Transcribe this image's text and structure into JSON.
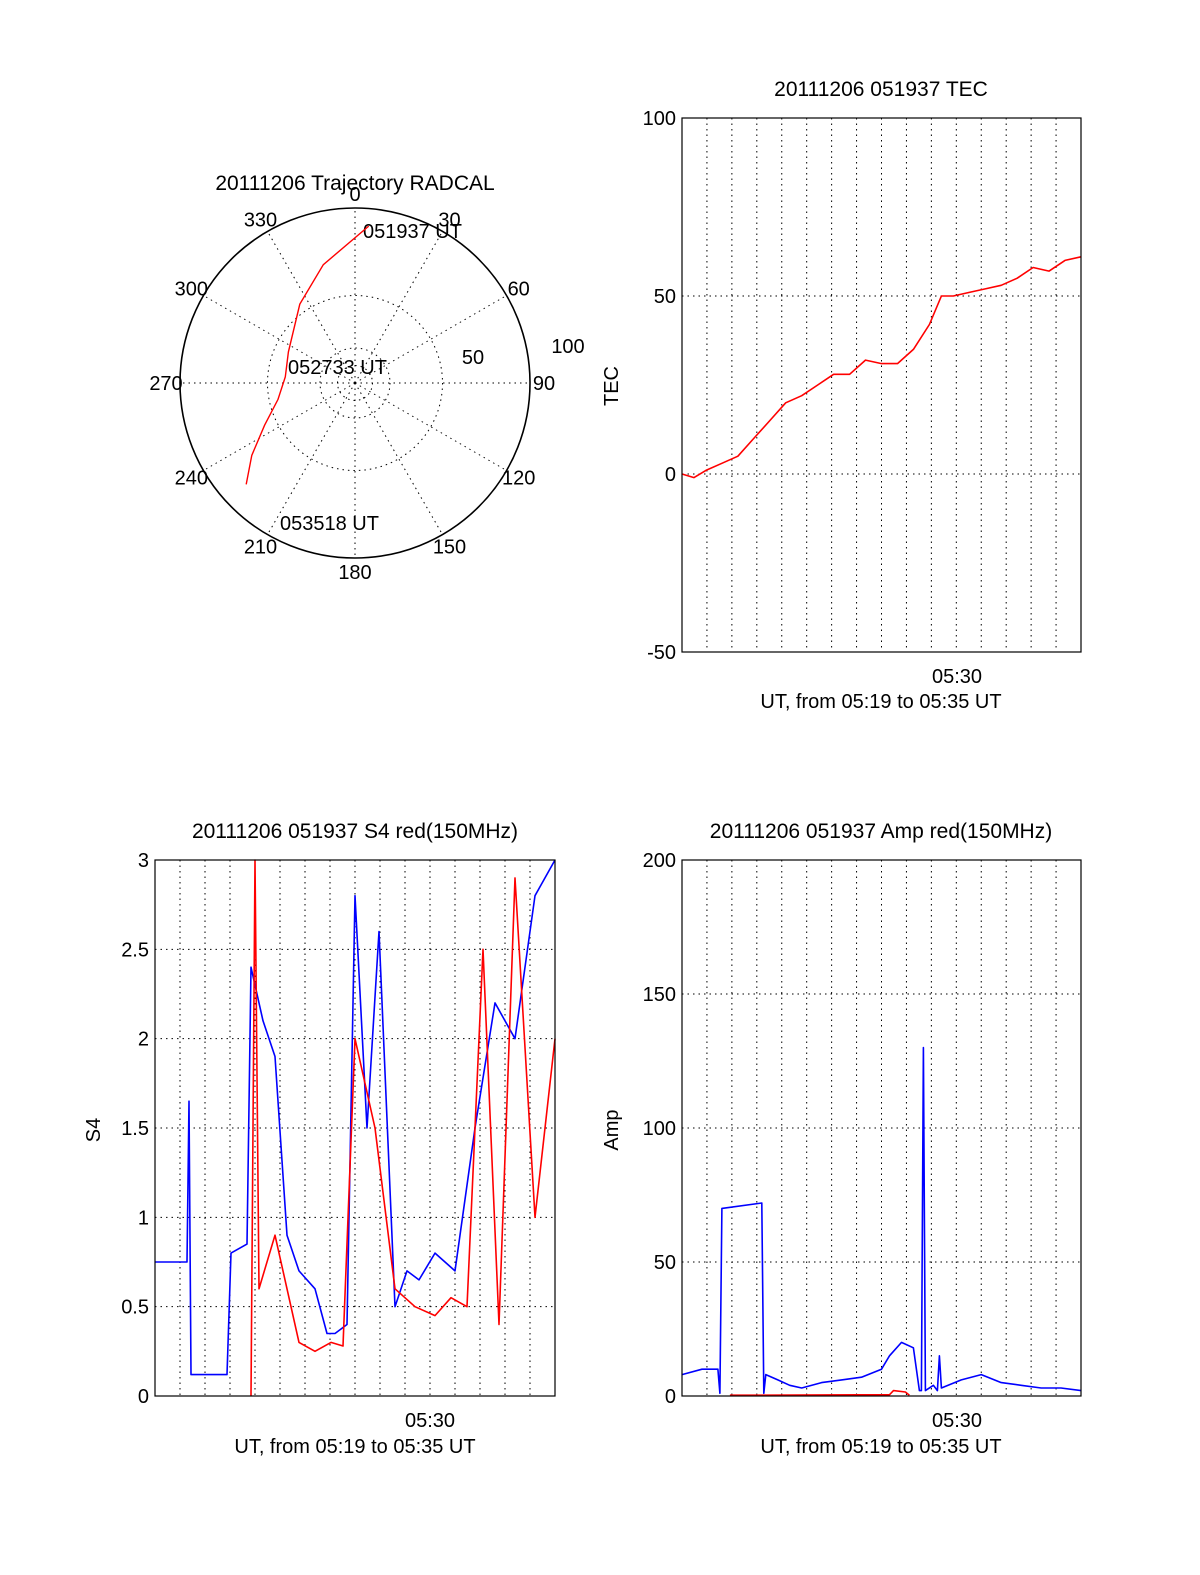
{
  "colors": {
    "red": "#ff0000",
    "blue": "#0000ff",
    "axis": "#000000"
  },
  "chart_data": [
    {
      "id": "trajectory",
      "type": "polar",
      "title": "20111206 Trajectory RADCAL",
      "azimuth_labels": [
        "0",
        "30",
        "60",
        "90",
        "120",
        "150",
        "180",
        "210",
        "240",
        "270",
        "300",
        "330"
      ],
      "radius_labels": [
        "50",
        "100"
      ],
      "radius_range": [
        0,
        100
      ],
      "point_labels": [
        "051937 UT",
        "052733 UT",
        "053518 UT"
      ],
      "series": [
        {
          "color": "#ff0000",
          "points": [
            {
              "az": 5,
              "r": 90
            },
            {
              "az": 345,
              "r": 70
            },
            {
              "az": 325,
              "r": 55
            },
            {
              "az": 295,
              "r": 42
            },
            {
              "az": 275,
              "r": 40
            },
            {
              "az": 258,
              "r": 45
            },
            {
              "az": 245,
              "r": 57
            },
            {
              "az": 235,
              "r": 72
            },
            {
              "az": 227,
              "r": 85
            }
          ]
        }
      ],
      "grid": true
    },
    {
      "id": "tec",
      "type": "line",
      "title": "20111206 051937 TEC",
      "xlabel": "UT, from 05:19 to 05:35 UT",
      "ylabel": "TEC",
      "x_tick_label": "05:30",
      "ylim": [
        -50,
        100
      ],
      "yticks": [
        "-50",
        "0",
        "50",
        "100"
      ],
      "grid": true,
      "series": [
        {
          "color": "#ff0000",
          "x": [
            0.0,
            0.03,
            0.06,
            0.1,
            0.14,
            0.18,
            0.22,
            0.26,
            0.3,
            0.34,
            0.38,
            0.42,
            0.46,
            0.5,
            0.54,
            0.58,
            0.62,
            0.65,
            0.68,
            0.72,
            0.76,
            0.8,
            0.84,
            0.88,
            0.92,
            0.96,
            1.0
          ],
          "y": [
            0,
            -1,
            1,
            3,
            5,
            10,
            15,
            20,
            22,
            25,
            28,
            28,
            32,
            31,
            31,
            35,
            42,
            50,
            50,
            51,
            52,
            53,
            55,
            58,
            57,
            60,
            61
          ]
        }
      ]
    },
    {
      "id": "s4",
      "type": "line",
      "title": "20111206 051937 S4 red(150MHz)",
      "xlabel": "UT, from 05:19 to 05:35 UT",
      "ylabel": "S4",
      "x_tick_label": "05:30",
      "ylim": [
        0,
        3
      ],
      "yticks": [
        "0",
        "0.5",
        "1",
        "1.5",
        "2",
        "2.5",
        "3"
      ],
      "grid": true,
      "series": [
        {
          "color": "#0000ff",
          "x": [
            0.0,
            0.08,
            0.085,
            0.09,
            0.18,
            0.19,
            0.23,
            0.24,
            0.27,
            0.3,
            0.33,
            0.36,
            0.4,
            0.43,
            0.45,
            0.48,
            0.5,
            0.53,
            0.56,
            0.6,
            0.63,
            0.66,
            0.7,
            0.75,
            0.8,
            0.85,
            0.9,
            0.95,
            1.0
          ],
          "y": [
            0.75,
            0.75,
            1.65,
            0.12,
            0.12,
            0.8,
            0.85,
            2.4,
            2.1,
            1.9,
            0.9,
            0.7,
            0.6,
            0.35,
            0.35,
            0.4,
            2.8,
            1.5,
            2.6,
            0.5,
            0.7,
            0.65,
            0.8,
            0.7,
            1.5,
            2.2,
            2.0,
            2.8,
            3.0
          ]
        },
        {
          "color": "#ff0000",
          "x": [
            0.24,
            0.25,
            0.26,
            0.3,
            0.34,
            0.36,
            0.4,
            0.44,
            0.47,
            0.5,
            0.55,
            0.6,
            0.65,
            0.7,
            0.74,
            0.78,
            0.82,
            0.86,
            0.9,
            0.95,
            1.0
          ],
          "y": [
            0.0,
            3.0,
            0.6,
            0.9,
            0.5,
            0.3,
            0.25,
            0.3,
            0.28,
            2.0,
            1.5,
            0.6,
            0.5,
            0.45,
            0.55,
            0.5,
            2.5,
            0.4,
            2.9,
            1.0,
            2.0
          ]
        }
      ]
    },
    {
      "id": "amp",
      "type": "line",
      "title": "20111206 051937 Amp red(150MHz)",
      "xlabel": "UT, from 05:19 to 05:35 UT",
      "ylabel": "Amp",
      "x_tick_label": "05:30",
      "ylim": [
        0,
        200
      ],
      "yticks": [
        "0",
        "50",
        "100",
        "150",
        "200"
      ],
      "grid": true,
      "series": [
        {
          "color": "#0000ff",
          "x": [
            0.0,
            0.05,
            0.09,
            0.095,
            0.1,
            0.2,
            0.205,
            0.21,
            0.24,
            0.27,
            0.3,
            0.35,
            0.4,
            0.45,
            0.5,
            0.52,
            0.55,
            0.58,
            0.595,
            0.6,
            0.605,
            0.61,
            0.63,
            0.64,
            0.645,
            0.65,
            0.7,
            0.75,
            0.8,
            0.85,
            0.9,
            0.95,
            1.0
          ],
          "y": [
            8,
            10,
            10,
            1,
            70,
            72,
            1,
            8,
            6,
            4,
            3,
            5,
            6,
            7,
            10,
            15,
            20,
            18,
            2,
            2,
            130,
            2,
            4,
            2,
            15,
            3,
            6,
            8,
            5,
            4,
            3,
            3,
            2
          ]
        },
        {
          "color": "#ff0000",
          "x": [
            0.12,
            0.2,
            0.52,
            0.53,
            0.56,
            0.57
          ],
          "y": [
            0.3,
            0.3,
            0.5,
            2.0,
            1.5,
            0.3
          ]
        }
      ]
    }
  ]
}
